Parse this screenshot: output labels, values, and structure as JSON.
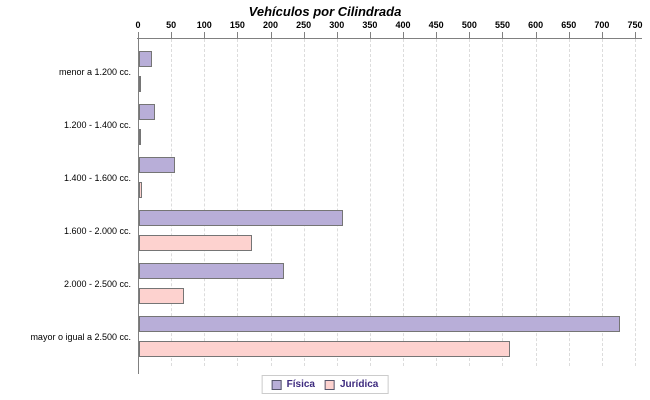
{
  "chart_data": {
    "type": "bar",
    "orientation": "horizontal",
    "title": "Vehículos por Cilindrada",
    "categories": [
      "menor a 1.200 cc.",
      "1.200 - 1.400 cc.",
      "1.400 - 1.600 cc.",
      "1.600 - 2.000 cc.",
      "2.000 - 2.500 cc.",
      "mayor o igual a 2.500 cc."
    ],
    "series": [
      {
        "name": "Física",
        "color": "#b8aed8",
        "values": [
          20,
          24,
          55,
          308,
          219,
          726
        ]
      },
      {
        "name": "Jurídica",
        "color": "#fdd2cf",
        "values": [
          2,
          1,
          5,
          170,
          68,
          560
        ]
      }
    ],
    "xlim": [
      0,
      750
    ],
    "xticks": [
      0,
      50,
      100,
      150,
      200,
      250,
      300,
      350,
      400,
      450,
      500,
      550,
      600,
      650,
      700,
      750
    ],
    "grid": "vertical-dashed",
    "legend_position": "bottom-center",
    "legend_text_color": "#3d2a7e",
    "bar_border_color": "#757575",
    "axis_color": "#808080",
    "gridline_color": "#dcdcdc"
  }
}
